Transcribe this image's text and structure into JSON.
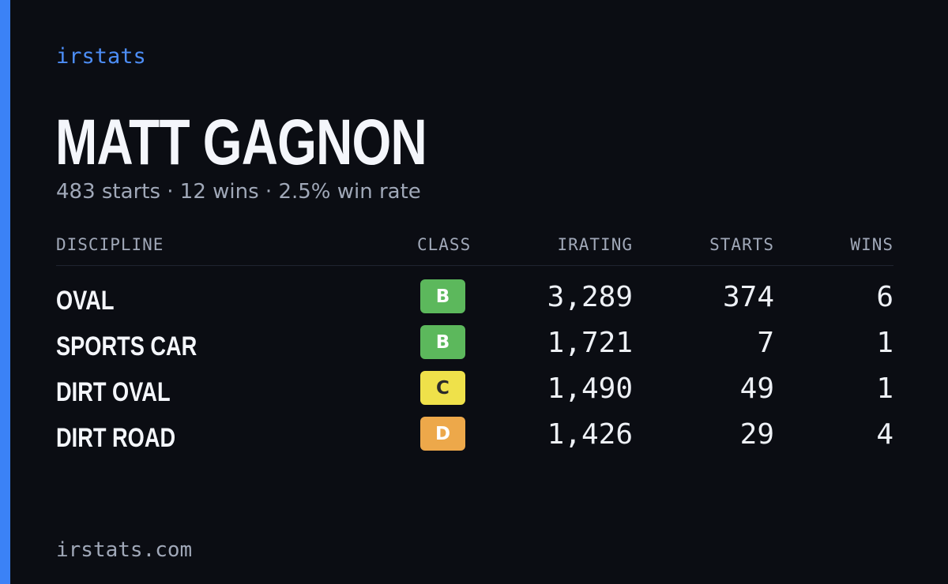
{
  "brand": "irstats",
  "player": {
    "name": "MATT GAGNON",
    "summary": "483 starts · 12 wins · 2.5% win rate"
  },
  "table": {
    "headers": {
      "discipline": "DISCIPLINE",
      "class": "CLASS",
      "irating": "IRATING",
      "starts": "STARTS",
      "wins": "WINS"
    },
    "rows": [
      {
        "discipline": "OVAL",
        "class": "B",
        "class_color": "#5cb85c",
        "class_text_color": "#ffffff",
        "irating": "3,289",
        "starts": "374",
        "wins": "6"
      },
      {
        "discipline": "SPORTS CAR",
        "class": "B",
        "class_color": "#5cb85c",
        "class_text_color": "#ffffff",
        "irating": "1,721",
        "starts": "7",
        "wins": "1"
      },
      {
        "discipline": "DIRT OVAL",
        "class": "C",
        "class_color": "#efe14a",
        "class_text_color": "#2a2a2a",
        "irating": "1,490",
        "starts": "49",
        "wins": "1"
      },
      {
        "discipline": "DIRT ROAD",
        "class": "D",
        "class_color": "#eda84a",
        "class_text_color": "#ffffff",
        "irating": "1,426",
        "starts": "29",
        "wins": "4"
      }
    ]
  },
  "footer": "irstats.com",
  "colors": {
    "background": "#0b0d13",
    "accent": "#3b82f6",
    "brand_text": "#4d8ef7",
    "muted_text": "#a0a8b8",
    "primary_text": "#f4f6fb"
  }
}
